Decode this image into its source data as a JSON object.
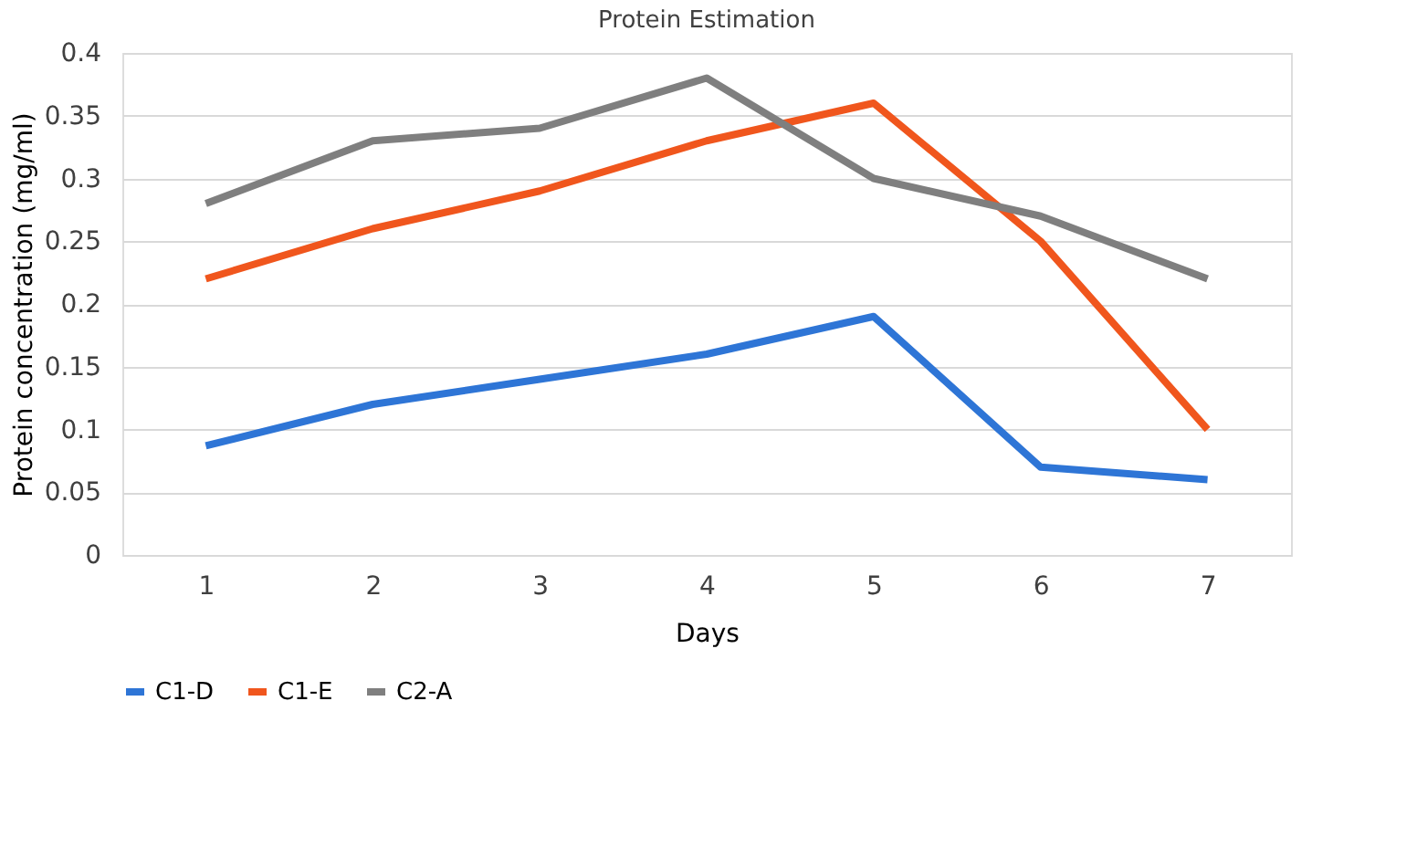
{
  "chart_data": {
    "type": "line",
    "title": "Protein Estimation",
    "xlabel": "Days",
    "ylabel": "Protein concentration (mg/ml)",
    "categories": [
      "1",
      "2",
      "3",
      "4",
      "5",
      "6",
      "7"
    ],
    "series": [
      {
        "name": "C1-D",
        "color": "#2e75d6",
        "values": [
          0.087,
          0.12,
          0.14,
          0.16,
          0.19,
          0.07,
          0.06
        ]
      },
      {
        "name": "C1-E",
        "color": "#f0561d",
        "values": [
          0.22,
          0.26,
          0.29,
          0.33,
          0.36,
          0.25,
          0.1
        ]
      },
      {
        "name": "C2-A",
        "color": "#7f7f7f",
        "values": [
          0.28,
          0.33,
          0.34,
          0.38,
          0.3,
          0.27,
          0.22
        ]
      }
    ],
    "ylim": [
      0,
      0.4
    ],
    "yticks": [
      0,
      0.05,
      0.1,
      0.15,
      0.2,
      0.25,
      0.3,
      0.35,
      0.4
    ],
    "grid": "y",
    "legend": "bottom",
    "marker": "none",
    "line_style": "solid"
  }
}
